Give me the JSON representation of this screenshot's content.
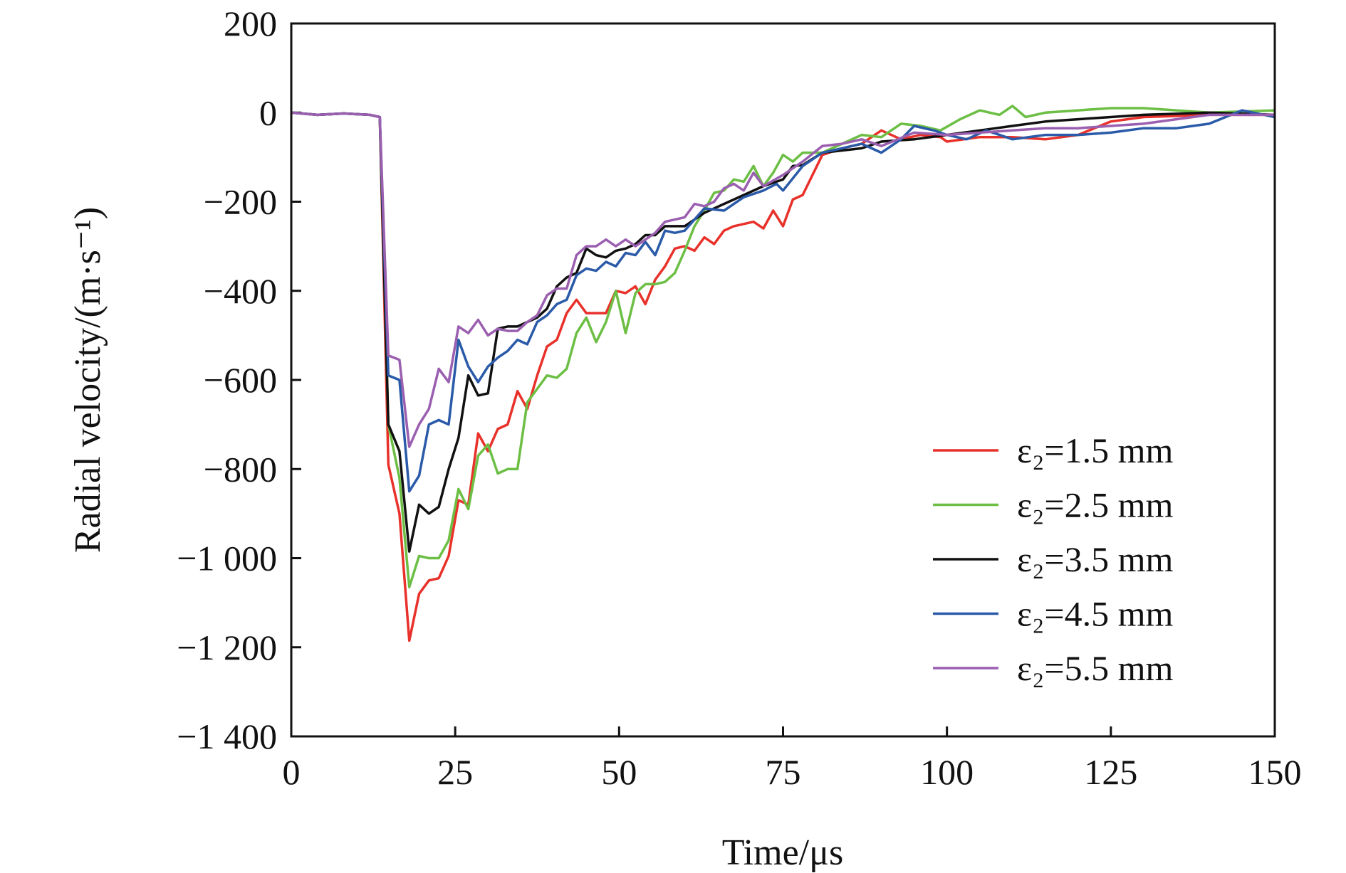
{
  "chart_data": {
    "type": "line",
    "title": "",
    "xlabel": "Time/μs",
    "ylabel": "Radial velocity/(m·s⁻¹)",
    "xlim": [
      0,
      150
    ],
    "ylim": [
      -1400,
      200
    ],
    "xticks": [
      0,
      25,
      50,
      75,
      100,
      125,
      150
    ],
    "xtick_labels": [
      "0",
      "25",
      "50",
      "75",
      "100",
      "125",
      "150"
    ],
    "yticks": [
      200,
      0,
      -200,
      -400,
      -600,
      -800,
      -1000,
      -1200,
      -1400
    ],
    "ytick_labels": [
      "200",
      "0",
      "−200",
      "−400",
      "−600",
      "−800",
      "−1 000",
      "−1 200",
      "−1 400"
    ],
    "grid": false,
    "legend_position": "bottom-right",
    "series": [
      {
        "name": "ε₂=1.5 mm",
        "color": "#e8312a",
        "x": [
          0,
          4,
          8,
          12,
          13.5,
          14.8,
          16.5,
          18,
          19.5,
          21,
          22.5,
          24,
          25.5,
          27,
          28.5,
          30,
          31.5,
          33,
          34.5,
          36,
          37.5,
          39,
          40.5,
          42,
          43.5,
          45,
          46.5,
          48,
          49.5,
          51,
          52.5,
          54,
          55.5,
          57,
          58.5,
          60,
          61.5,
          63,
          64.5,
          66,
          67.5,
          69,
          70.5,
          72,
          73.5,
          75,
          76.5,
          78,
          79.5,
          81,
          84,
          87,
          90,
          93,
          96,
          99,
          100,
          105,
          110,
          115,
          120,
          125,
          130,
          140,
          150
        ],
        "y": [
          0,
          -5,
          -2,
          -5,
          -10,
          -790,
          -900,
          -1185,
          -1080,
          -1050,
          -1045,
          -995,
          -870,
          -880,
          -720,
          -760,
          -710,
          -700,
          -625,
          -665,
          -590,
          -525,
          -510,
          -450,
          -420,
          -450,
          -450,
          -450,
          -400,
          -405,
          -390,
          -430,
          -375,
          -345,
          -305,
          -300,
          -310,
          -280,
          -295,
          -265,
          -255,
          -250,
          -245,
          -260,
          -220,
          -255,
          -195,
          -185,
          -140,
          -95,
          -80,
          -70,
          -40,
          -60,
          -50,
          -55,
          -65,
          -55,
          -55,
          -60,
          -50,
          -20,
          -10,
          -5,
          -5
        ]
      },
      {
        "name": "ε₂=2.5 mm",
        "color": "#6cbf44",
        "x": [
          0,
          4,
          8,
          12,
          13.5,
          14.8,
          16.5,
          18,
          19.5,
          21,
          22.5,
          24,
          25.5,
          27,
          28.5,
          30,
          31.5,
          33,
          34.5,
          36,
          37.5,
          39,
          40.5,
          42,
          43.5,
          45,
          46.5,
          48,
          49.5,
          51,
          52.5,
          54,
          55.5,
          57,
          58.5,
          60,
          61.5,
          63,
          64.5,
          66,
          67.5,
          69,
          70.5,
          72,
          73.5,
          75,
          76.5,
          78,
          81,
          84,
          87,
          90,
          93,
          96,
          99,
          102,
          105,
          108,
          110,
          112,
          115,
          120,
          125,
          130,
          135,
          140,
          150
        ],
        "y": [
          0,
          -5,
          -2,
          -5,
          -10,
          -700,
          -820,
          -1065,
          -995,
          -1000,
          -1000,
          -960,
          -845,
          -890,
          -770,
          -745,
          -810,
          -800,
          -800,
          -650,
          -620,
          -590,
          -595,
          -575,
          -495,
          -460,
          -515,
          -470,
          -400,
          -495,
          -405,
          -385,
          -385,
          -380,
          -360,
          -310,
          -255,
          -220,
          -180,
          -175,
          -150,
          -155,
          -120,
          -165,
          -135,
          -95,
          -110,
          -90,
          -90,
          -70,
          -50,
          -55,
          -25,
          -30,
          -40,
          -15,
          5,
          -5,
          15,
          -10,
          0,
          5,
          10,
          10,
          5,
          0,
          5
        ]
      },
      {
        "name": "ε₂=3.5 mm",
        "color": "#111111",
        "x": [
          0,
          4,
          8,
          12,
          13.5,
          14.8,
          16.5,
          18,
          19.5,
          21,
          22.5,
          24,
          25.5,
          27,
          28.5,
          30,
          31.5,
          33,
          34.5,
          36,
          37.5,
          39,
          40.5,
          42,
          43.5,
          45,
          46.5,
          48,
          49.5,
          51,
          52.5,
          54,
          55.5,
          57,
          60,
          63,
          66,
          69,
          72,
          75,
          76.5,
          78,
          81,
          84,
          87,
          90,
          95,
          100,
          105,
          110,
          115,
          120,
          125,
          130,
          140,
          150
        ],
        "y": [
          0,
          -5,
          -2,
          -5,
          -10,
          -700,
          -760,
          -985,
          -880,
          -900,
          -885,
          -800,
          -730,
          -590,
          -635,
          -630,
          -485,
          -480,
          -480,
          -470,
          -460,
          -440,
          -390,
          -370,
          -360,
          -305,
          -320,
          -325,
          -310,
          -305,
          -295,
          -275,
          -275,
          -255,
          -255,
          -225,
          -205,
          -185,
          -165,
          -150,
          -120,
          -118,
          -90,
          -85,
          -80,
          -65,
          -60,
          -50,
          -40,
          -30,
          -20,
          -15,
          -10,
          -5,
          0,
          -5
        ]
      },
      {
        "name": "ε₂=4.5 mm",
        "color": "#2a5aa8",
        "x": [
          0,
          4,
          8,
          12,
          13.5,
          14.8,
          16.5,
          18,
          19.5,
          21,
          22.5,
          24,
          25.5,
          27,
          28.5,
          30,
          31.5,
          33,
          34.5,
          36,
          37.5,
          39,
          40.5,
          42,
          43.5,
          45,
          46.5,
          48,
          49.5,
          51,
          52.5,
          54,
          55.5,
          57,
          58.5,
          60,
          63,
          66,
          69,
          72,
          74,
          75,
          78,
          81,
          84,
          87,
          90,
          93,
          95,
          98,
          100,
          103,
          106,
          110,
          115,
          120,
          125,
          130,
          135,
          140,
          145,
          150
        ],
        "y": [
          0,
          -5,
          -2,
          -5,
          -10,
          -590,
          -600,
          -850,
          -815,
          -700,
          -690,
          -700,
          -510,
          -570,
          -605,
          -570,
          -550,
          -535,
          -510,
          -520,
          -470,
          -455,
          -430,
          -420,
          -365,
          -350,
          -355,
          -335,
          -345,
          -315,
          -320,
          -290,
          -320,
          -265,
          -270,
          -265,
          -215,
          -220,
          -190,
          -175,
          -160,
          -175,
          -120,
          -90,
          -80,
          -70,
          -90,
          -60,
          -30,
          -40,
          -50,
          -60,
          -40,
          -60,
          -50,
          -50,
          -45,
          -35,
          -35,
          -25,
          5,
          -10
        ]
      },
      {
        "name": "ε₂=5.5 mm",
        "color": "#9b5fb0",
        "x": [
          0,
          4,
          8,
          12,
          13.5,
          14.8,
          16.5,
          18,
          19.5,
          21,
          22.5,
          24,
          25.5,
          27,
          28.5,
          30,
          31.5,
          33,
          34.5,
          36,
          37.5,
          39,
          40.5,
          42,
          43.5,
          45,
          46.5,
          48,
          49.5,
          51,
          52.5,
          54,
          55.5,
          57,
          60,
          61.5,
          63,
          64.5,
          66,
          67.5,
          69,
          70.5,
          72,
          75,
          78,
          81,
          84,
          87,
          90,
          95,
          100,
          105,
          110,
          115,
          120,
          125,
          130,
          135,
          140,
          150
        ],
        "y": [
          0,
          -5,
          -2,
          -5,
          -10,
          -545,
          -555,
          -750,
          -700,
          -665,
          -575,
          -605,
          -480,
          -495,
          -465,
          -500,
          -485,
          -490,
          -490,
          -470,
          -455,
          -410,
          -395,
          -395,
          -320,
          -300,
          -300,
          -285,
          -300,
          -285,
          -300,
          -285,
          -270,
          -245,
          -235,
          -205,
          -210,
          -200,
          -170,
          -160,
          -175,
          -135,
          -165,
          -140,
          -110,
          -75,
          -70,
          -60,
          -75,
          -45,
          -50,
          -45,
          -40,
          -35,
          -35,
          -30,
          -25,
          -15,
          -5,
          -5
        ]
      }
    ]
  }
}
